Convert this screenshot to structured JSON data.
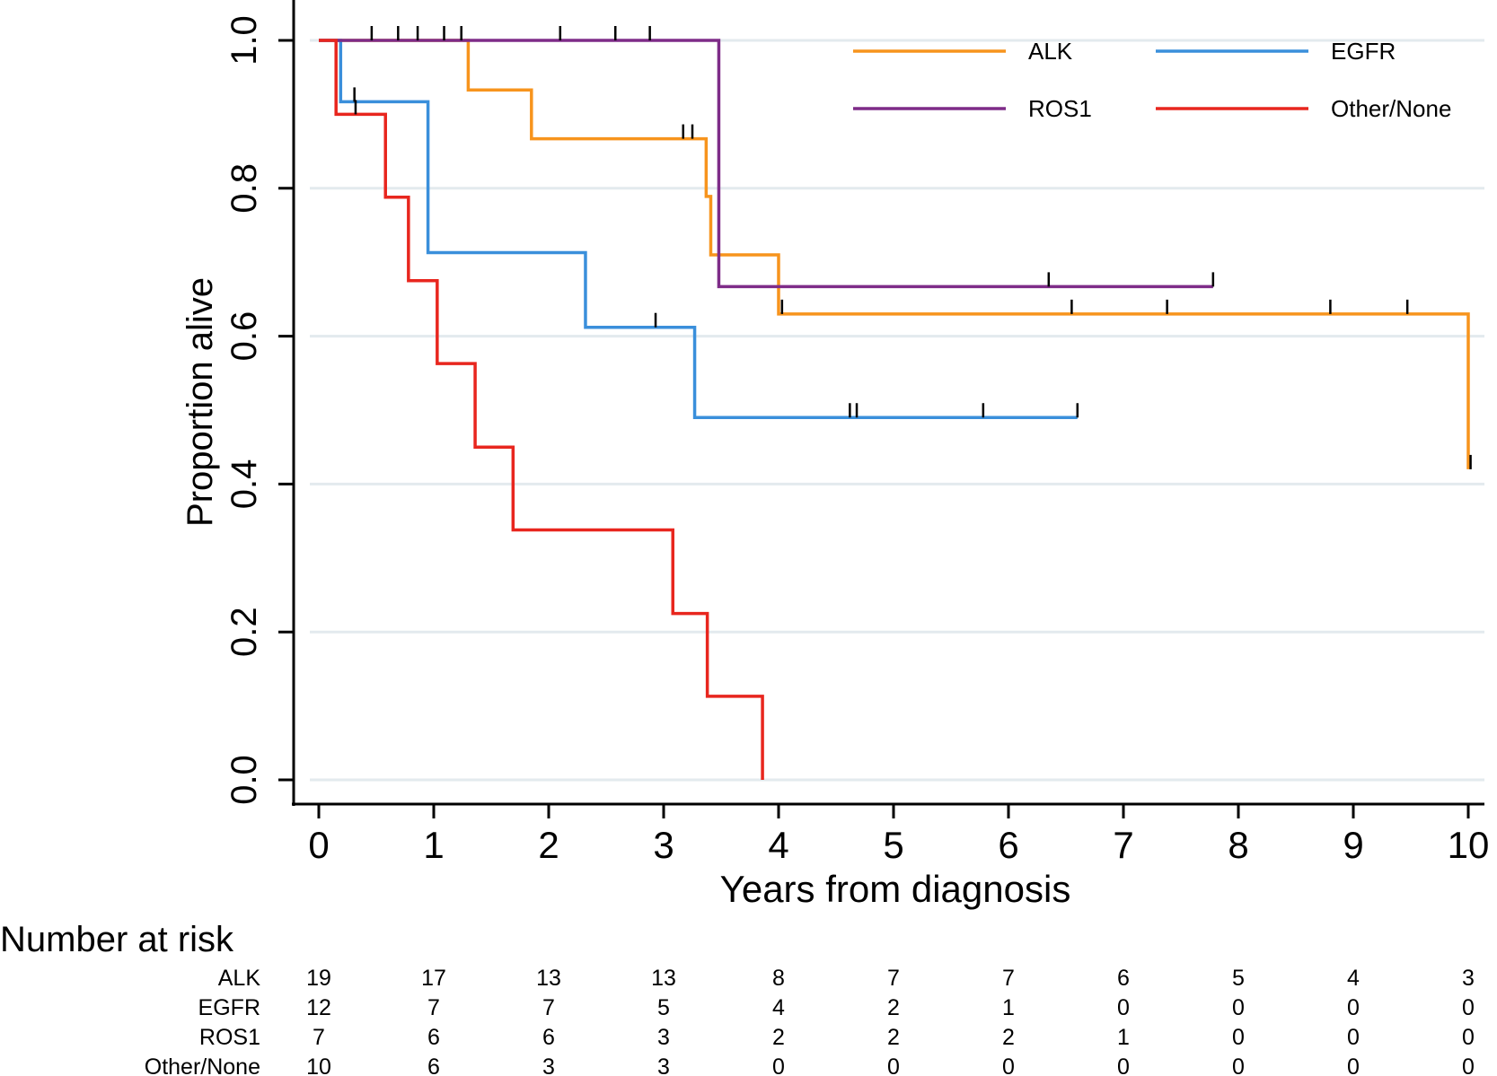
{
  "chart_data": {
    "type": "line",
    "subtype": "kaplan-meier step",
    "xlabel": "Years from diagnosis",
    "ylabel": "Proportion alive",
    "xlim": [
      0,
      10
    ],
    "ylim": [
      0,
      1
    ],
    "x_ticks": [
      "0",
      "1",
      "2",
      "3",
      "4",
      "5",
      "6",
      "7",
      "8",
      "9",
      "10"
    ],
    "y_ticks": [
      "0.0",
      "0.2",
      "0.4",
      "0.6",
      "0.8",
      "1.0"
    ],
    "grid": "horizontal",
    "legend_position": "top-right",
    "series": [
      {
        "name": "ALK",
        "color": "#F7941D",
        "steps": [
          [
            0,
            1.0
          ],
          [
            1.3,
            0.933
          ],
          [
            1.85,
            0.867
          ],
          [
            3.37,
            0.789
          ],
          [
            3.41,
            0.71
          ],
          [
            4.0,
            0.63
          ],
          [
            10.0,
            0.42
          ]
        ],
        "end": 10.0,
        "censor": [
          3.17,
          3.25,
          4.03,
          6.55,
          7.38,
          8.8,
          9.47,
          10.02
        ]
      },
      {
        "name": "EGFR",
        "color": "#3A8FDB",
        "steps": [
          [
            0,
            1.0
          ],
          [
            0.19,
            0.917
          ],
          [
            0.95,
            0.713
          ],
          [
            2.32,
            0.612
          ],
          [
            3.27,
            0.49
          ]
        ],
        "end": 6.6,
        "censor": [
          0.31,
          2.93,
          4.62,
          4.68,
          5.78,
          6.6
        ]
      },
      {
        "name": "ROS1",
        "color": "#7E2C88",
        "steps": [
          [
            0,
            1.0
          ],
          [
            3.48,
            0.667
          ]
        ],
        "end": 7.78,
        "censor": [
          0.46,
          0.69,
          0.86,
          1.09,
          1.24,
          2.1,
          2.58,
          2.88,
          6.35,
          7.78
        ]
      },
      {
        "name": "Other/None",
        "color": "#E8261E",
        "steps": [
          [
            0,
            1.0
          ],
          [
            0.15,
            0.9
          ],
          [
            0.58,
            0.788
          ],
          [
            0.78,
            0.675
          ],
          [
            1.03,
            0.563
          ],
          [
            1.36,
            0.45
          ],
          [
            1.69,
            0.338
          ],
          [
            3.08,
            0.225
          ],
          [
            3.38,
            0.113
          ],
          [
            3.86,
            0.0
          ]
        ],
        "end": 3.86,
        "censor": [
          0.32
        ]
      }
    ],
    "risk_table": {
      "title": "Number at risk",
      "times": [
        0,
        1,
        2,
        3,
        4,
        5,
        6,
        7,
        8,
        9,
        10
      ],
      "rows": [
        {
          "label": "ALK",
          "values": [
            "19",
            "17",
            "13",
            "13",
            "8",
            "7",
            "7",
            "6",
            "5",
            "4",
            "3"
          ]
        },
        {
          "label": "EGFR",
          "values": [
            "12",
            "7",
            "7",
            "5",
            "4",
            "2",
            "1",
            "0",
            "0",
            "0",
            "0"
          ]
        },
        {
          "label": "ROS1",
          "values": [
            "7",
            "6",
            "6",
            "3",
            "2",
            "2",
            "2",
            "1",
            "0",
            "0",
            "0"
          ]
        },
        {
          "label": "Other/None",
          "values": [
            "10",
            "6",
            "3",
            "3",
            "0",
            "0",
            "0",
            "0",
            "0",
            "0",
            "0"
          ]
        }
      ]
    }
  }
}
